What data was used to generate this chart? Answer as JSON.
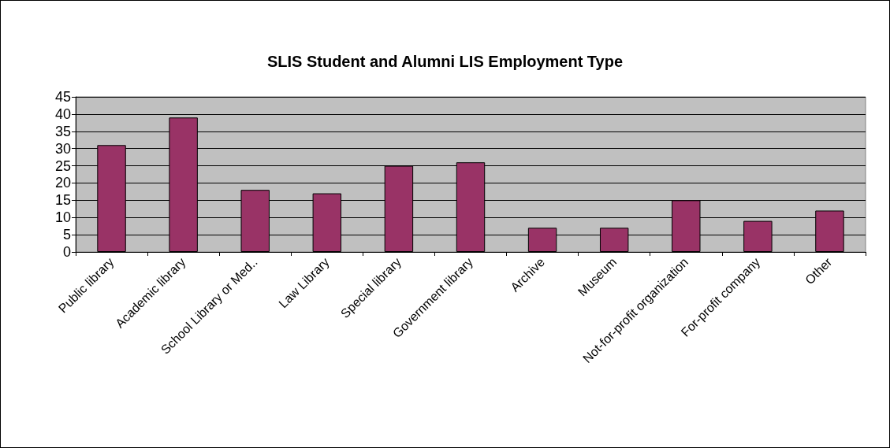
{
  "chart_data": {
    "type": "bar",
    "title": "SLIS Student and Alumni LIS Employment Type",
    "categories": [
      "Public library",
      "Academic library",
      "School Library or Med..",
      "Law Library",
      "Special library",
      "Government library",
      "Archive",
      "Museum",
      "Not-for-profit organization",
      "For-profit company",
      "Other"
    ],
    "values": [
      31,
      39,
      18,
      17,
      25,
      26,
      7,
      7,
      15,
      9,
      12
    ],
    "color": "#993366",
    "ylim": [
      0,
      45
    ],
    "yticks": [
      0,
      5,
      10,
      15,
      20,
      25,
      30,
      35,
      40,
      45
    ],
    "grid": "y"
  }
}
